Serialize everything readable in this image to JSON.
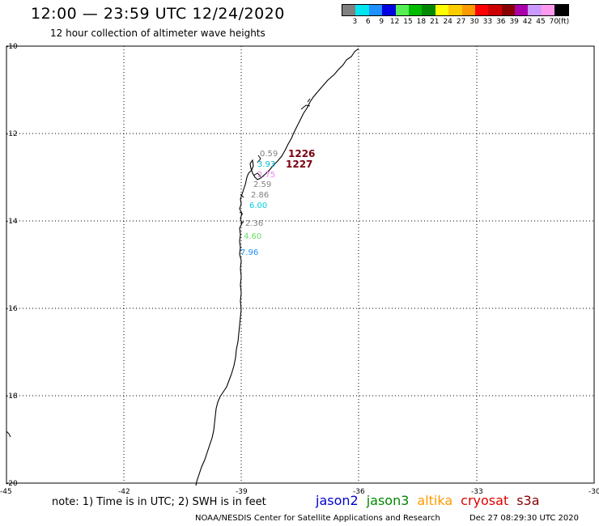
{
  "header": {
    "title": "12:00 — 23:59 UTC 12/24/2020",
    "subtitle": "12 hour collection of altimeter wave heights"
  },
  "legend": {
    "unit": "(ft)",
    "swatches": [
      "#808080",
      "#00e5f0",
      "#1e90ff",
      "#0000e0",
      "#55ee55",
      "#00bb00",
      "#008800",
      "#ffff00",
      "#ffcc00",
      "#ff9900",
      "#ff0000",
      "#cc0000",
      "#880000",
      "#aa00aa",
      "#cc99ff",
      "#ff99ee",
      "#000000"
    ],
    "labels": [
      "3",
      "6",
      "9",
      "12",
      "15",
      "18",
      "21",
      "24",
      "27",
      "30",
      "33",
      "36",
      "39",
      "42",
      "45",
      "70"
    ]
  },
  "map": {
    "lat_labels": [
      "-10",
      "-12",
      "-14",
      "-16",
      "-18",
      "-20"
    ],
    "lon_labels": [
      "-45",
      "-42",
      "-39",
      "-36",
      "-33",
      "-30"
    ],
    "swh_values": [
      {
        "text": "0.59",
        "color": "#808080"
      },
      {
        "text": "3.93",
        "color": "#00bcd4"
      },
      {
        "text": "2.75",
        "color": "#ee82ee"
      },
      {
        "text": "2.59",
        "color": "#808080"
      },
      {
        "text": "2.86",
        "color": "#808080"
      },
      {
        "text": "6.00",
        "color": "#00cfe0"
      },
      {
        "text": "2.36",
        "color": "#808080"
      },
      {
        "text": "4.60",
        "color": "#66dd66"
      },
      {
        "text": "7.96",
        "color": "#1e90ff"
      }
    ],
    "pass_times": [
      "1226",
      "1227"
    ]
  },
  "footer": {
    "note": "note:  1) Time is in UTC;  2) SWH is in feet",
    "satellites": [
      {
        "name": "jason2",
        "color": "#0000cc"
      },
      {
        "name": "jason3",
        "color": "#008800"
      },
      {
        "name": "altika",
        "color": "#ff9900"
      },
      {
        "name": "cryosat",
        "color": "#dd0000"
      },
      {
        "name": "s3a",
        "color": "#880000"
      }
    ],
    "credit": "NOAA/NESDIS Center for Satellite Applications and Research",
    "timestamp": "Dec 27 08:29:30 UTC 2020"
  }
}
